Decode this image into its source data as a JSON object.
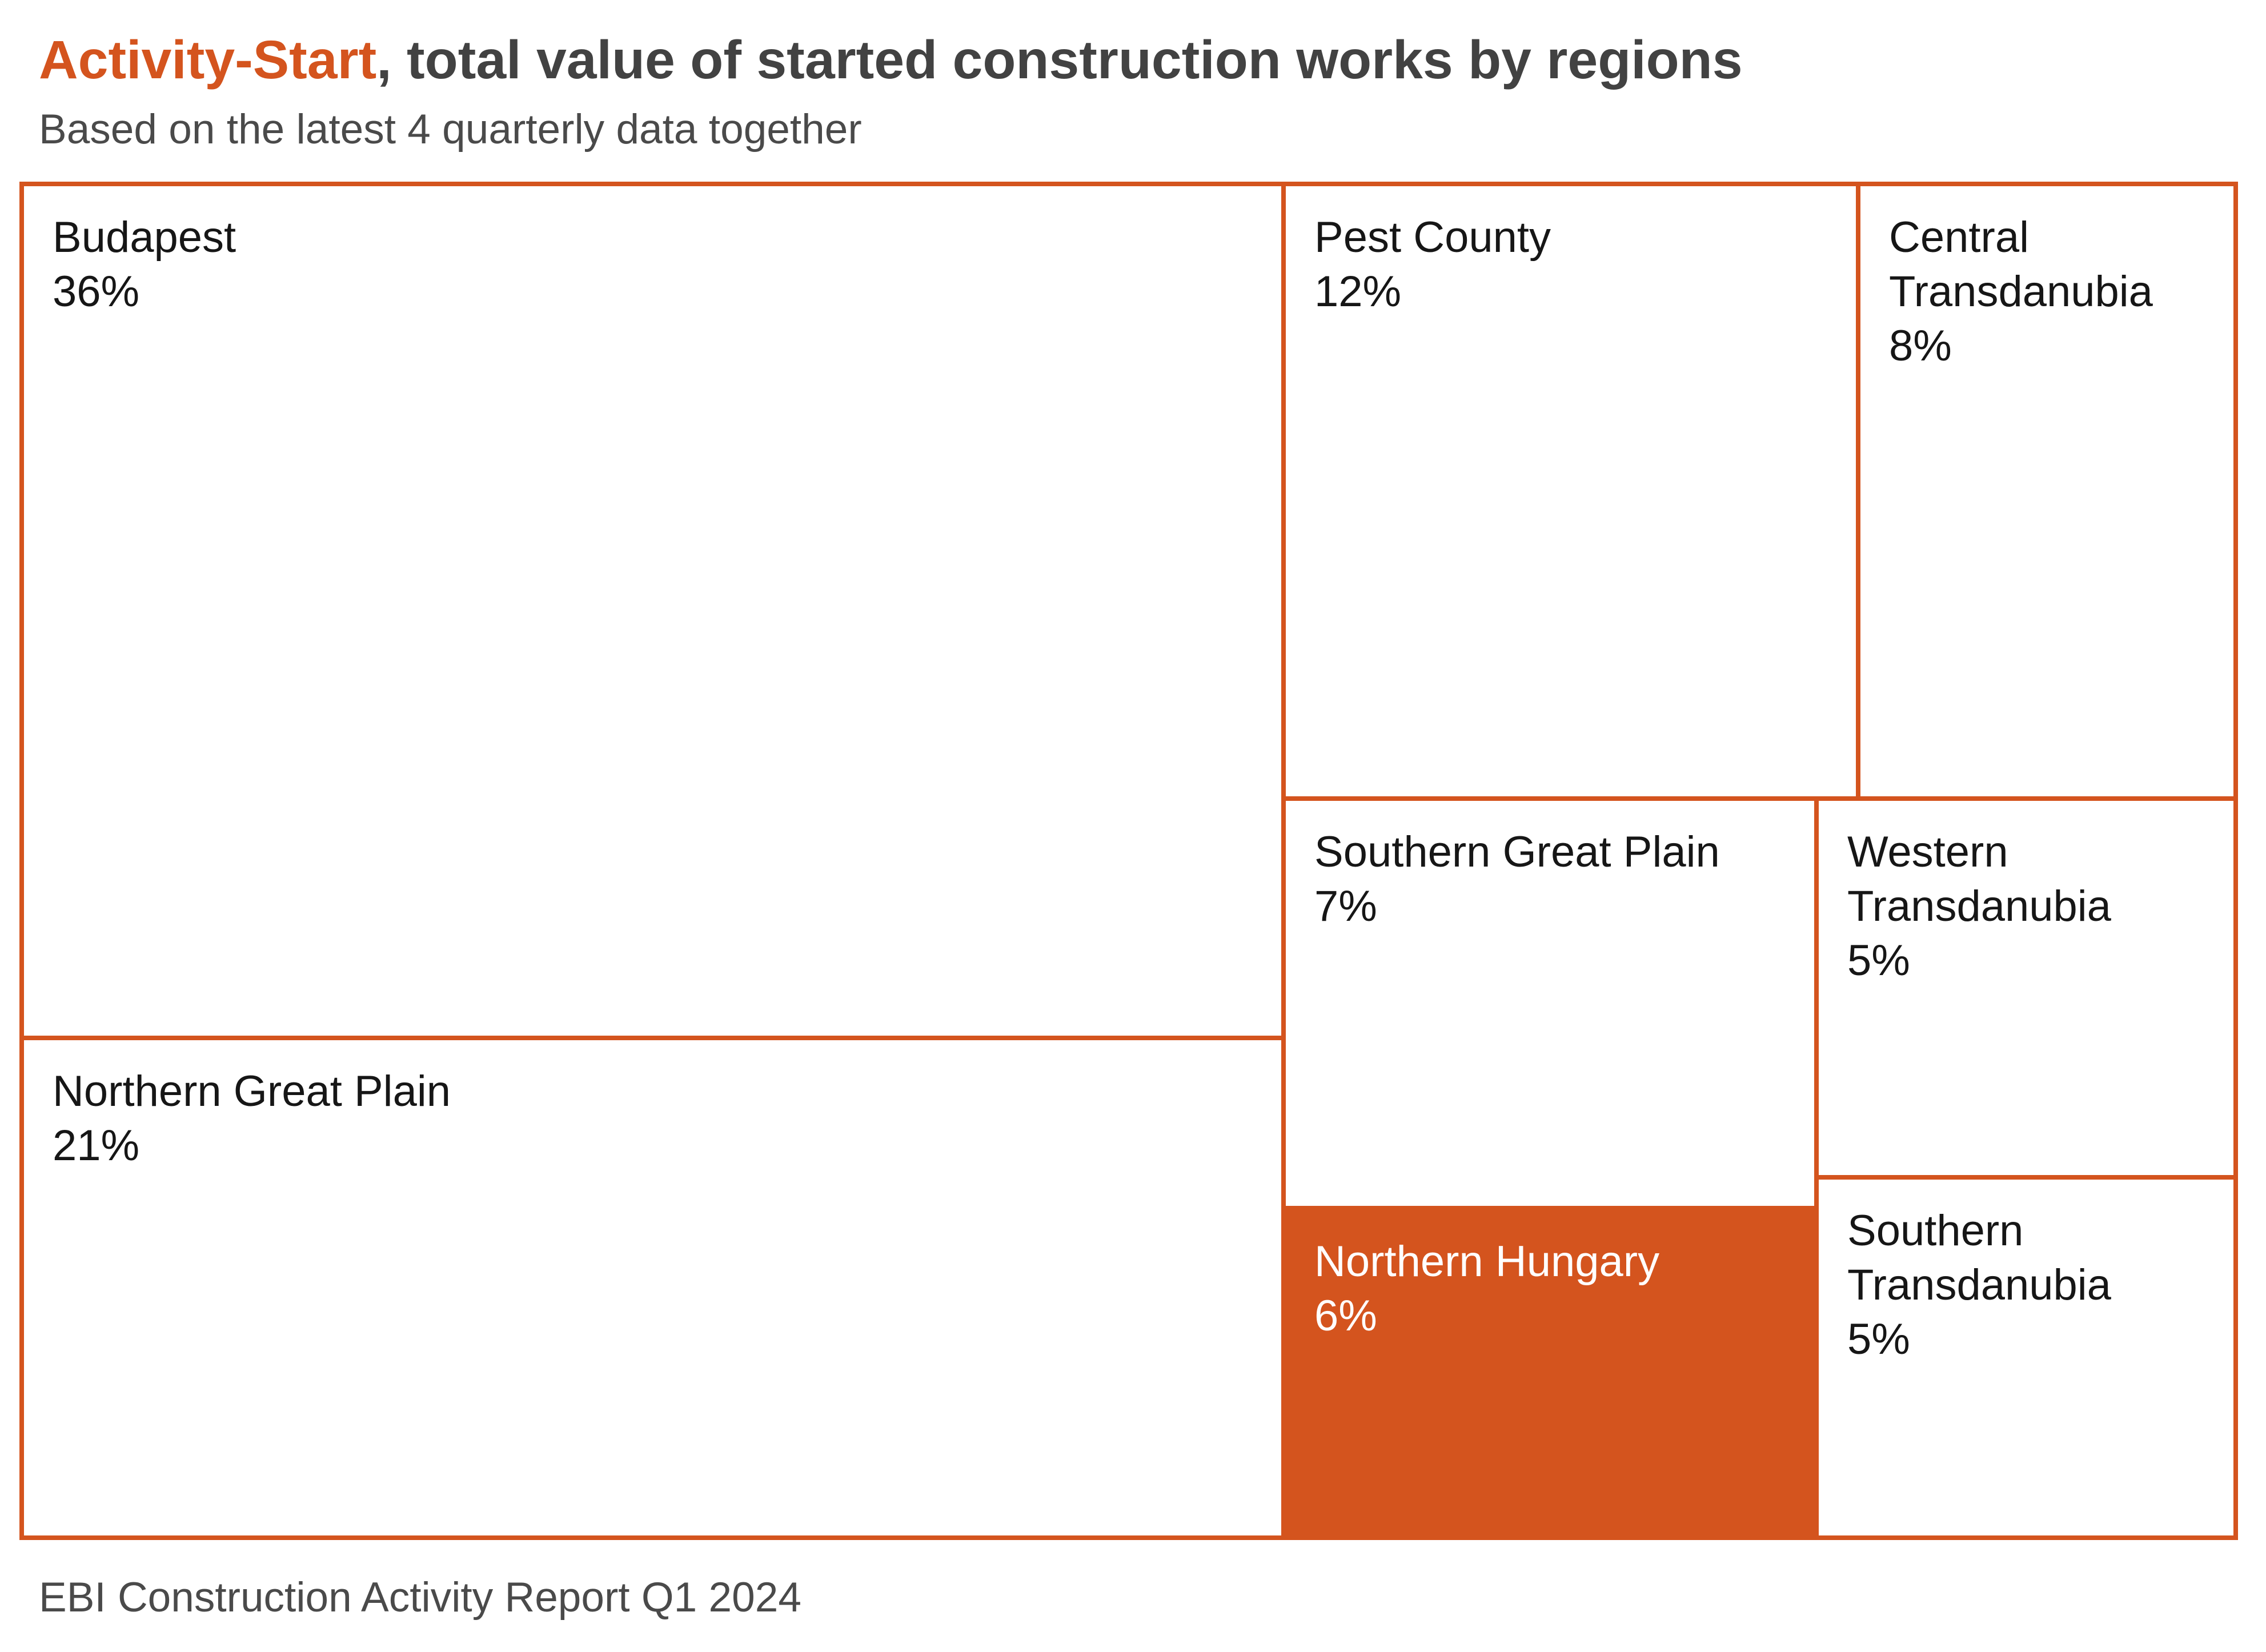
{
  "header": {
    "title_highlight": "Activity-Start",
    "title_rest": ", total value of started construction works by regions",
    "subtitle": "Based on the latest 4 quarterly data together"
  },
  "footer": {
    "text": "EBI Construction Activity Report Q1 2024"
  },
  "colors": {
    "accent_orange": "#D4541E",
    "highlight_cell_fill": "#D4541E",
    "cell_fill": "#FFFFFF",
    "cell_label": "#161616",
    "highlight_cell_label": "#FFFFFF",
    "heading_gray": "#424242"
  },
  "chart_data": {
    "type": "treemap",
    "title": "Activity-Start, total value of started construction works by regions",
    "subtitle": "Based on the latest 4 quarterly data together",
    "unit": "%",
    "categories": [
      "Budapest",
      "Northern Great Plain",
      "Pest County",
      "Central Transdanubia",
      "Southern Great Plain",
      "Northern Hungary",
      "Western Transdanubia",
      "Southern Transdanubia"
    ],
    "values": [
      36,
      21,
      12,
      8,
      7,
      6,
      5,
      5
    ],
    "legend": "none",
    "regions": [
      {
        "name": "Budapest",
        "value": 36,
        "pct_label": "36%",
        "highlighted": false
      },
      {
        "name": "Northern Great Plain",
        "value": 21,
        "pct_label": "21%",
        "highlighted": false
      },
      {
        "name": "Pest County",
        "value": 12,
        "pct_label": "12%",
        "highlighted": false
      },
      {
        "name": "Central Transdanubia",
        "value": 8,
        "pct_label": "8%",
        "highlighted": false
      },
      {
        "name": "Southern Great Plain",
        "value": 7,
        "pct_label": "7%",
        "highlighted": false
      },
      {
        "name": "Western Transdanubia",
        "value": 5,
        "pct_label": "5%",
        "highlighted": false
      },
      {
        "name": "Northern Hungary",
        "value": 6,
        "pct_label": "6%",
        "highlighted": true
      },
      {
        "name": "Southern Transdanubia",
        "value": 5,
        "pct_label": "5%",
        "highlighted": false
      }
    ]
  }
}
